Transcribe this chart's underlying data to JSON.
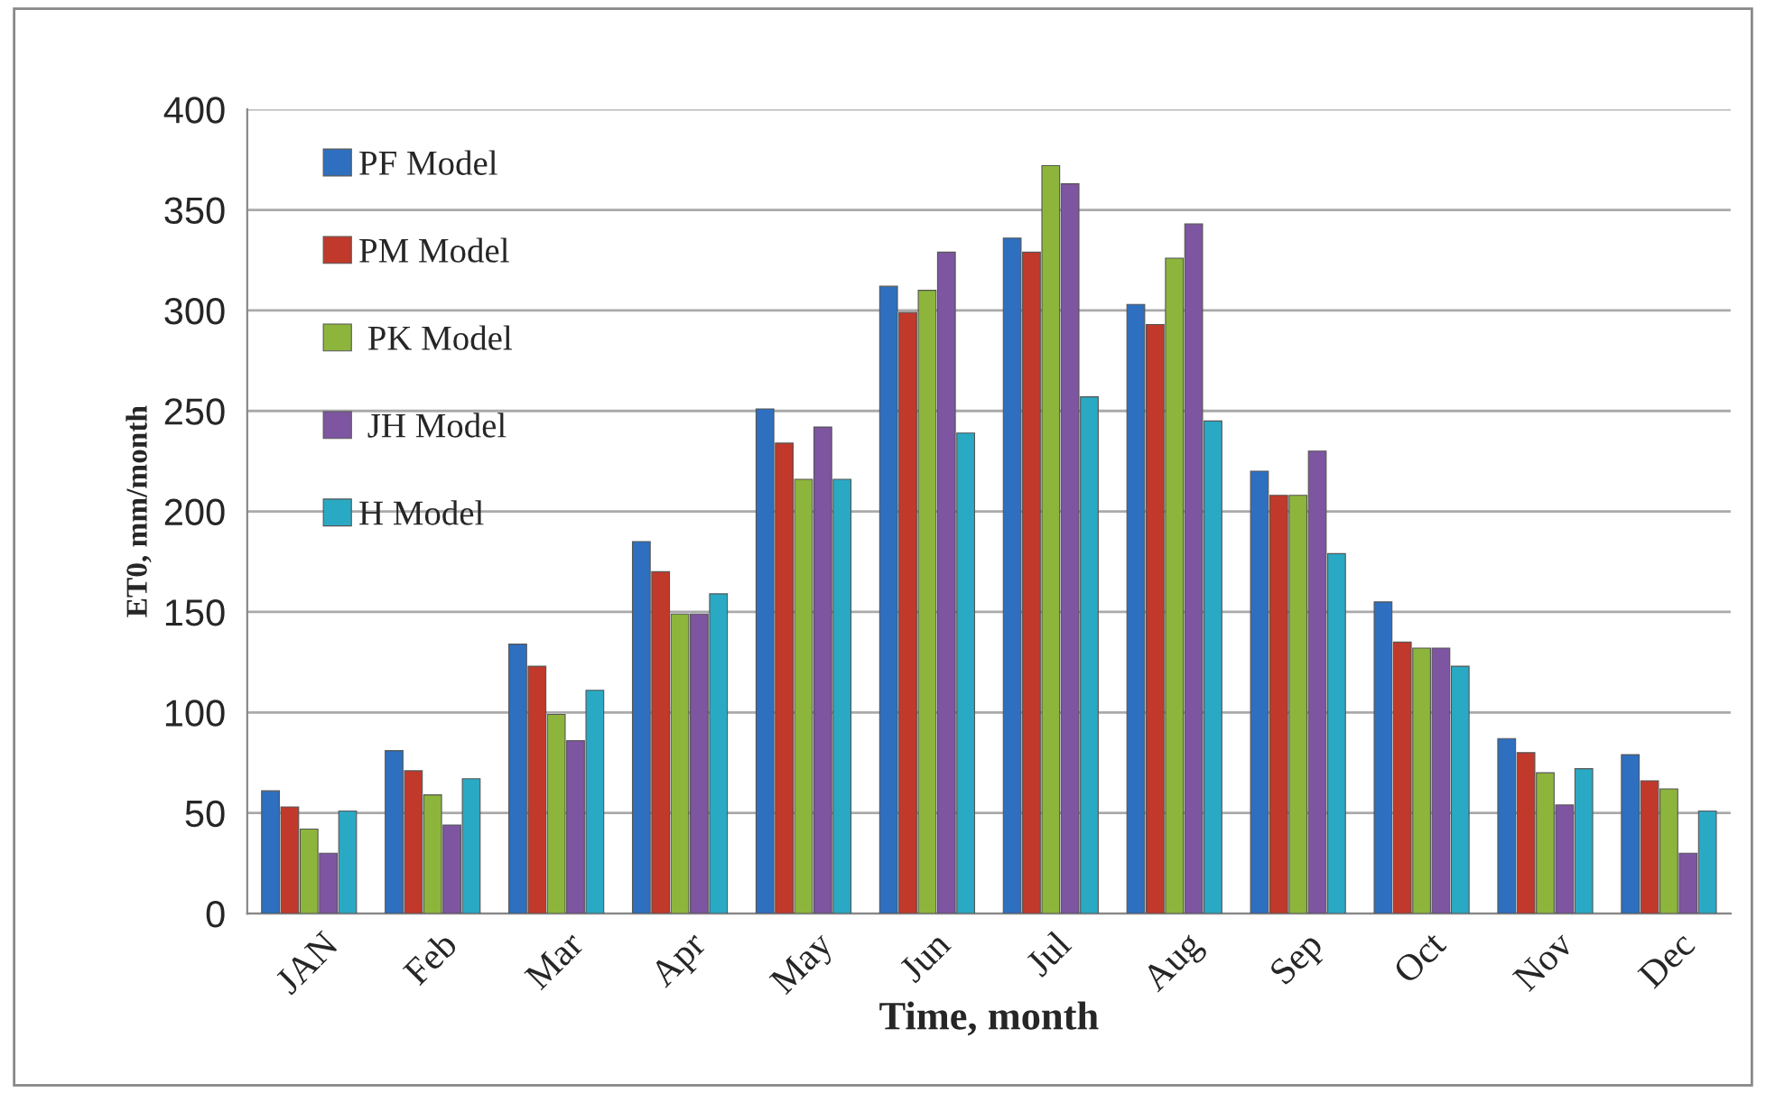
{
  "chart_data": {
    "type": "bar",
    "xlabel": "Time, month",
    "ylabel": "ET0, mm/month",
    "categories": [
      "JAN",
      "Feb",
      "Mar",
      "Apr",
      "May",
      "Jun",
      "Jul",
      "Aug",
      "Sep",
      "Oct",
      "Nov",
      "Dec"
    ],
    "series": [
      {
        "name": "PF Model",
        "color": "#2e6fbf",
        "values": [
          61,
          81,
          134,
          185,
          251,
          312,
          336,
          303,
          220,
          155,
          87,
          79
        ]
      },
      {
        "name": "PM Model",
        "color": "#c0392b",
        "values": [
          53,
          71,
          123,
          170,
          234,
          299,
          329,
          293,
          208,
          135,
          80,
          66
        ]
      },
      {
        "name": " PK Model",
        "color": "#8db53c",
        "values": [
          42,
          59,
          99,
          149,
          216,
          310,
          372,
          326,
          208,
          132,
          70,
          62
        ]
      },
      {
        "name": " JH Model",
        "color": "#7d55a0",
        "values": [
          30,
          44,
          86,
          149,
          242,
          329,
          363,
          343,
          230,
          132,
          54,
          30
        ]
      },
      {
        "name": "H Model",
        "color": "#2aa9c4",
        "values": [
          51,
          67,
          111,
          159,
          216,
          239,
          257,
          245,
          179,
          123,
          72,
          51
        ]
      }
    ],
    "ylim": [
      0,
      400
    ],
    "yticks": [
      0,
      50,
      100,
      150,
      200,
      250,
      300,
      350,
      400
    ],
    "grid": "y",
    "legend": "top left"
  }
}
